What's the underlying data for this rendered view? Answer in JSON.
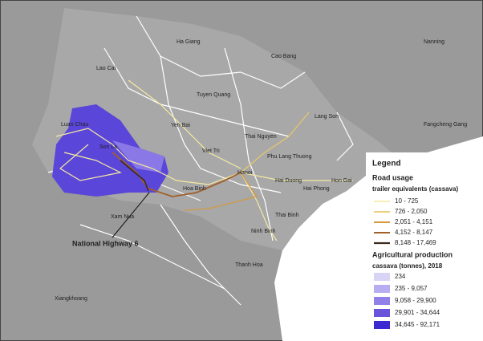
{
  "places": [
    "Ha Giang",
    "Nanning",
    "Cao Bang",
    "Lao Cai",
    "Tuyen Quang",
    "Lang Son",
    "Luan Chau",
    "Yen Bai",
    "Thai Nguyen",
    "Fangcheng Gang",
    "Son La",
    "Viet Tri",
    "Phu Lang Thuong",
    "Hanoi",
    "Hai Duong",
    "Hon Gai",
    "Hoa Binh",
    "Hai Phong",
    "Xam Nua",
    "Thai Binh",
    "Ninh Binh",
    "Thanh Hoa",
    "Xiangkhoang"
  ],
  "annotation": "National Highway 6",
  "legend": {
    "title": "Legend",
    "road_title": "Road usage",
    "road_subtitle": "trailer equivalents (cassava)",
    "road_classes": [
      "10 - 725",
      "726 - 2,050",
      "2,051 - 4,151",
      "4,152 - 8,147",
      "8,148 - 17,469"
    ],
    "production_title": "Agricultural production",
    "production_subtitle": "cassava (tonnes), 2018",
    "production_classes": [
      "234",
      "235 - 9,057",
      "9,058 - 29,900",
      "29,901 - 34,644",
      "34,645 - 92,171"
    ]
  }
}
